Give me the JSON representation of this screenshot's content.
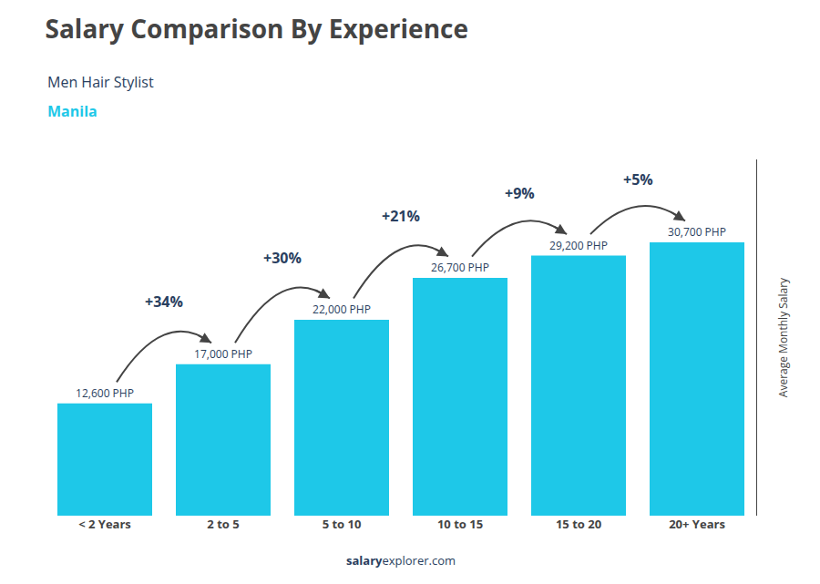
{
  "chart_data": {
    "type": "bar",
    "title": "Salary Comparison By Experience",
    "subtitle": "Men Hair Stylist",
    "city": "Manila",
    "source": [
      "salary",
      "explorer.com"
    ],
    "ylabel": "Average Monthly Salary",
    "categories": [
      "< 2 Years",
      "2 to 5",
      "5 to 10",
      "10 to 15",
      "15 to 20",
      "20+ Years"
    ],
    "values": [
      12600,
      17000,
      22000,
      26700,
      29200,
      30700
    ],
    "value_labels": [
      "12,600 PHP",
      "17,000 PHP",
      "22,000 PHP",
      "26,700 PHP",
      "29,200 PHP",
      "30,700 PHP"
    ],
    "data_labels": true,
    "annotations": [
      {
        "text": "+34%",
        "from": "< 2 Years",
        "to": "2 to 5"
      },
      {
        "text": "+30%",
        "from": "2 to 5",
        "to": "5 to 10"
      },
      {
        "text": "+21%",
        "from": "5 to 10",
        "to": "10 to 15"
      },
      {
        "text": "+9%",
        "from": "10 to 15",
        "to": "15 to 20"
      },
      {
        "text": "+5%",
        "from": "15 to 20",
        "to": "20+ Years"
      }
    ],
    "color": "#1EC8E8",
    "ylim": [
      0,
      40000
    ],
    "grid": false,
    "tick_labels": "x"
  }
}
